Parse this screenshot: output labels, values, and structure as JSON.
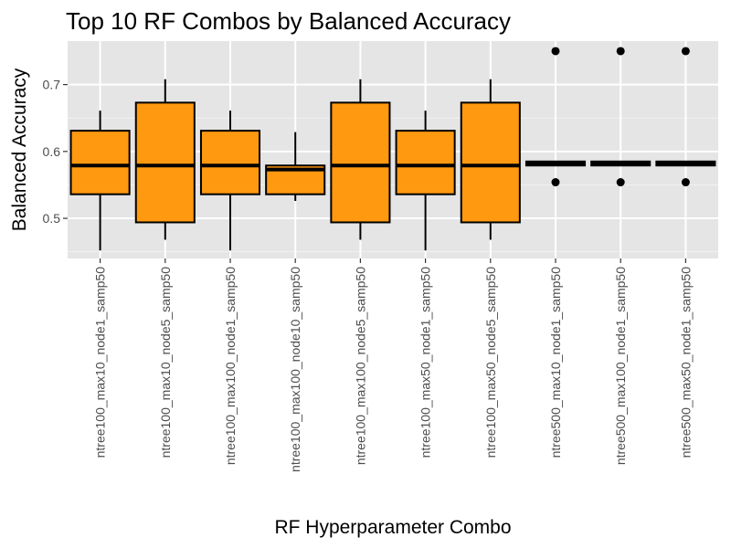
{
  "chart_data": {
    "type": "box",
    "title": "Top 10 RF Combos by Balanced Accuracy",
    "xlabel": "RF Hyperparameter Combo",
    "ylabel": "Balanced Accuracy",
    "ylim": [
      0.44,
      0.765
    ],
    "yticks": [
      0.5,
      0.6,
      0.7
    ],
    "ytick_labels": [
      "0.5",
      "0.6",
      "0.7"
    ],
    "grid": true,
    "fill_color": "#FF9910",
    "panel_color": "#E5E5E5",
    "categories": [
      "ntree100_max10_node1_samp50",
      "ntree100_max10_node5_samp50",
      "ntree100_max100_node1_samp50",
      "ntree100_max100_node10_samp50",
      "ntree100_max100_node5_samp50",
      "ntree100_max50_node1_samp50",
      "ntree100_max50_node5_samp50",
      "ntree500_max10_node1_samp50",
      "ntree500_max100_node1_samp50",
      "ntree500_max50_node1_samp50"
    ],
    "boxes": [
      {
        "whisker_low": 0.452,
        "q1": 0.536,
        "median": 0.579,
        "q3": 0.631,
        "whisker_high": 0.661,
        "outliers": []
      },
      {
        "whisker_low": 0.468,
        "q1": 0.494,
        "median": 0.579,
        "q3": 0.673,
        "whisker_high": 0.708,
        "outliers": []
      },
      {
        "whisker_low": 0.452,
        "q1": 0.536,
        "median": 0.579,
        "q3": 0.631,
        "whisker_high": 0.661,
        "outliers": []
      },
      {
        "whisker_low": 0.526,
        "q1": 0.536,
        "median": 0.573,
        "q3": 0.579,
        "whisker_high": 0.629,
        "outliers": []
      },
      {
        "whisker_low": 0.468,
        "q1": 0.494,
        "median": 0.579,
        "q3": 0.673,
        "whisker_high": 0.708,
        "outliers": []
      },
      {
        "whisker_low": 0.452,
        "q1": 0.536,
        "median": 0.579,
        "q3": 0.631,
        "whisker_high": 0.661,
        "outliers": []
      },
      {
        "whisker_low": 0.468,
        "q1": 0.494,
        "median": 0.579,
        "q3": 0.673,
        "whisker_high": 0.708,
        "outliers": []
      },
      {
        "whisker_low": 0.579,
        "q1": 0.579,
        "median": 0.582,
        "q3": 0.585,
        "whisker_high": 0.585,
        "outliers": [
          0.554,
          0.75
        ]
      },
      {
        "whisker_low": 0.579,
        "q1": 0.579,
        "median": 0.582,
        "q3": 0.585,
        "whisker_high": 0.585,
        "outliers": [
          0.554,
          0.75
        ]
      },
      {
        "whisker_low": 0.579,
        "q1": 0.579,
        "median": 0.582,
        "q3": 0.585,
        "whisker_high": 0.585,
        "outliers": [
          0.554,
          0.75
        ]
      }
    ]
  }
}
